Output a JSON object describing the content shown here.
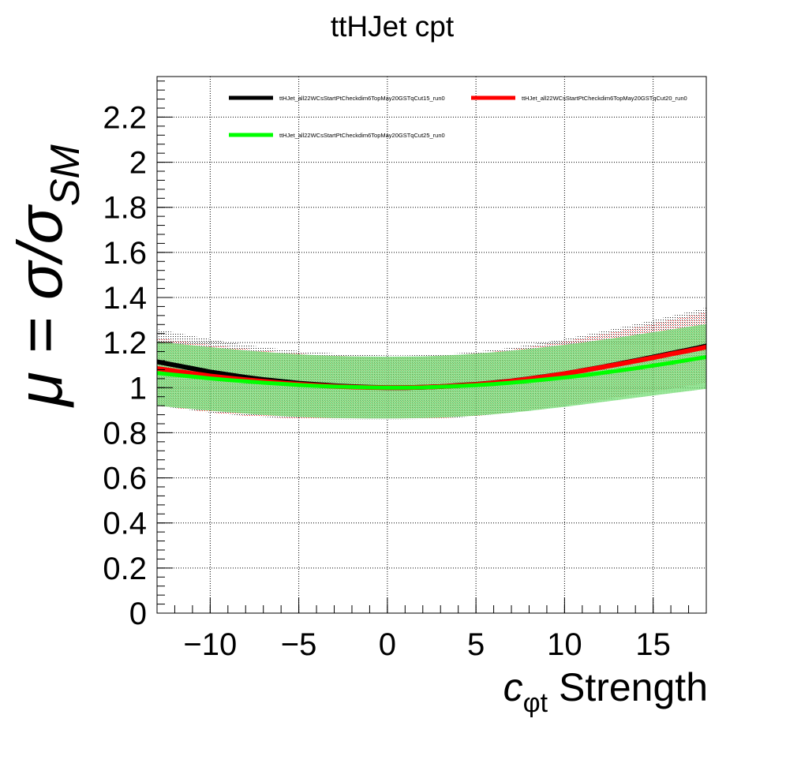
{
  "chart_data": {
    "type": "line",
    "title": "ttHJet cpt",
    "xlabel": {
      "main": "c",
      "sub": "φt",
      "rest": " Strength"
    },
    "ylabel": {
      "main": "μ = σ/σ",
      "sub": "SM"
    },
    "xlim": [
      -13,
      18
    ],
    "ylim": [
      0,
      2.38
    ],
    "x_ticks": [
      -10,
      -5,
      0,
      5,
      10,
      15
    ],
    "x_tick_labels": [
      "−10",
      "−5",
      "0",
      "5",
      "10",
      "15"
    ],
    "y_ticks": [
      0,
      0.2,
      0.4,
      0.6,
      0.8,
      1,
      1.2,
      1.4,
      1.6,
      1.8,
      2,
      2.2
    ],
    "y_tick_labels": [
      "0",
      "0.2",
      "0.4",
      "0.6",
      "0.8",
      "1",
      "1.2",
      "1.4",
      "1.6",
      "1.8",
      "2",
      "2.2"
    ],
    "grid": true,
    "legend_position": "top",
    "x": [
      -13,
      -12,
      -11,
      -10,
      -9,
      -8,
      -7,
      -6,
      -5,
      -4,
      -3,
      -2,
      -1,
      0,
      1,
      2,
      3,
      4,
      5,
      6,
      7,
      8,
      9,
      10,
      11,
      12,
      13,
      14,
      15,
      16,
      17,
      18
    ],
    "series": [
      {
        "name": "ttHJet_all22WCsStartPtCheckdim6TopMay20GSTqCut15_run0",
        "color": "#000000",
        "values": [
          1.115,
          1.1,
          1.085,
          1.07,
          1.058,
          1.046,
          1.036,
          1.028,
          1.02,
          1.014,
          1.009,
          1.005,
          1.002,
          1.0,
          1.0,
          1.002,
          1.005,
          1.01,
          1.015,
          1.022,
          1.03,
          1.04,
          1.051,
          1.062,
          1.076,
          1.09,
          1.105,
          1.12,
          1.136,
          1.152,
          1.168,
          1.185
        ],
        "band_lower": [
          0.92,
          0.91,
          0.9,
          0.89,
          0.882,
          0.875,
          0.87,
          0.866,
          0.863,
          0.861,
          0.86,
          0.86,
          0.86,
          0.86,
          0.86,
          0.861,
          0.864,
          0.868,
          0.874,
          0.882,
          0.89,
          0.9,
          0.91,
          0.92,
          0.932,
          0.945,
          0.957,
          0.97,
          0.982,
          0.995,
          1.008,
          1.02
        ],
        "band_upper": [
          1.26,
          1.245,
          1.23,
          1.215,
          1.202,
          1.19,
          1.18,
          1.171,
          1.163,
          1.157,
          1.152,
          1.148,
          1.145,
          1.143,
          1.143,
          1.145,
          1.148,
          1.153,
          1.16,
          1.168,
          1.178,
          1.19,
          1.203,
          1.216,
          1.232,
          1.248,
          1.265,
          1.282,
          1.3,
          1.318,
          1.336,
          1.355
        ]
      },
      {
        "name": "ttHJet_all22WCsStartPtCheckdim6TopMay20GSTqCut20_run0",
        "color": "#ff0000",
        "values": [
          1.085,
          1.074,
          1.063,
          1.052,
          1.043,
          1.035,
          1.028,
          1.021,
          1.015,
          1.01,
          1.006,
          1.003,
          1.001,
          1.0,
          1.0,
          1.002,
          1.005,
          1.009,
          1.014,
          1.021,
          1.029,
          1.039,
          1.05,
          1.062,
          1.075,
          1.089,
          1.103,
          1.118,
          1.133,
          1.149,
          1.164,
          1.18
        ],
        "band_lower": [
          0.92,
          0.91,
          0.9,
          0.89,
          0.882,
          0.875,
          0.87,
          0.866,
          0.863,
          0.861,
          0.86,
          0.86,
          0.86,
          0.86,
          0.86,
          0.861,
          0.864,
          0.868,
          0.874,
          0.882,
          0.89,
          0.9,
          0.91,
          0.92,
          0.932,
          0.945,
          0.957,
          0.97,
          0.982,
          0.995,
          1.008,
          1.02
        ],
        "band_upper": [
          1.22,
          1.21,
          1.2,
          1.19,
          1.181,
          1.172,
          1.164,
          1.157,
          1.151,
          1.146,
          1.142,
          1.139,
          1.137,
          1.136,
          1.136,
          1.138,
          1.141,
          1.146,
          1.152,
          1.16,
          1.169,
          1.18,
          1.192,
          1.205,
          1.22,
          1.235,
          1.251,
          1.267,
          1.284,
          1.301,
          1.318,
          1.335
        ]
      },
      {
        "name": "ttHJet_all22WCsStartPtCheckdim6TopMay20GSTqCut25_run0",
        "color": "#00ff00",
        "values": [
          1.065,
          1.057,
          1.049,
          1.041,
          1.034,
          1.028,
          1.022,
          1.017,
          1.012,
          1.008,
          1.005,
          1.003,
          1.001,
          1.0,
          1.0,
          1.001,
          1.004,
          1.007,
          1.011,
          1.016,
          1.022,
          1.029,
          1.037,
          1.045,
          1.054,
          1.064,
          1.075,
          1.086,
          1.098,
          1.11,
          1.123,
          1.136
        ],
        "band_lower": [
          0.92,
          0.912,
          0.905,
          0.898,
          0.891,
          0.885,
          0.879,
          0.874,
          0.87,
          0.867,
          0.865,
          0.864,
          0.863,
          0.863,
          0.864,
          0.865,
          0.867,
          0.871,
          0.876,
          0.882,
          0.889,
          0.897,
          0.906,
          0.915,
          0.925,
          0.935,
          0.945,
          0.955,
          0.965,
          0.975,
          0.985,
          0.995
        ],
        "band_upper": [
          1.205,
          1.196,
          1.188,
          1.18,
          1.172,
          1.165,
          1.159,
          1.153,
          1.148,
          1.144,
          1.141,
          1.139,
          1.138,
          1.137,
          1.138,
          1.139,
          1.142,
          1.146,
          1.151,
          1.157,
          1.164,
          1.172,
          1.181,
          1.19,
          1.2,
          1.211,
          1.222,
          1.234,
          1.246,
          1.258,
          1.27,
          1.282
        ]
      }
    ]
  }
}
